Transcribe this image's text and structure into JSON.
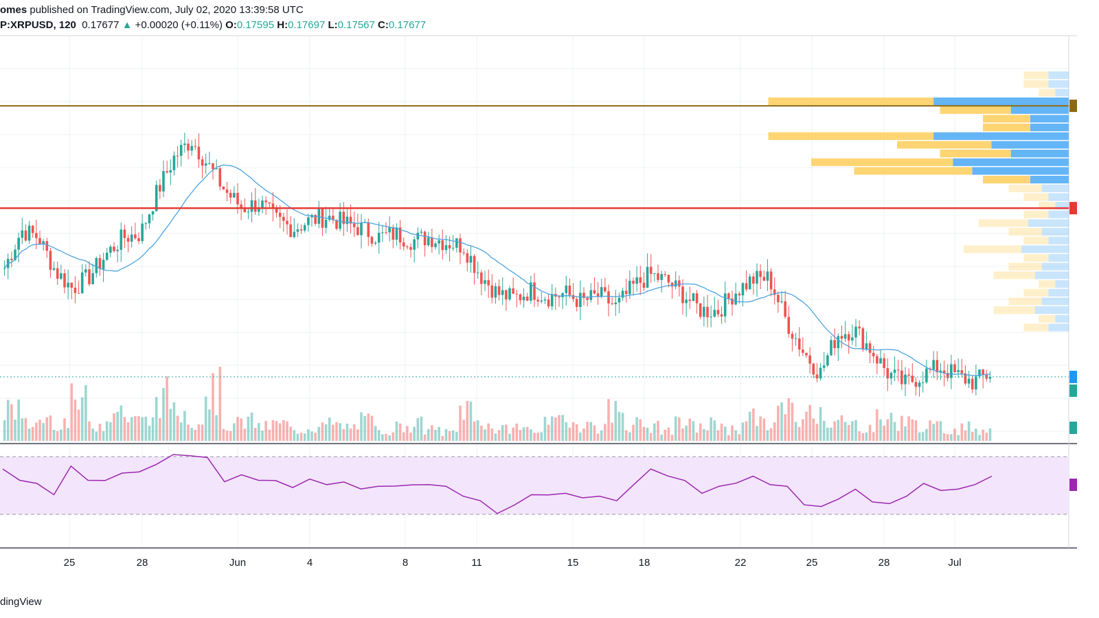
{
  "header": {
    "author": "omes",
    "published": "published on TradingView.com, July 02, 2020 13:39:58 UTC",
    "symbol": "P:XRPUSD, 120",
    "last": "0.17677",
    "arrow": "▲",
    "change": "+0.00020 (+0.11%)",
    "o_label": "O:",
    "o_value": "0.17595",
    "h_label": "H:",
    "h_value": "0.17697",
    "l_label": "L:",
    "l_value": "0.17567",
    "c_label": "C:",
    "c_value": "0.17677"
  },
  "footer": {
    "brand": "dingView"
  },
  "colors": {
    "up": "#26a69a",
    "down": "#ef5350",
    "ma": "#4aa3df",
    "rsi": "#9c27b0",
    "rsi_band": "#f3e5fb",
    "resistance": "#8b6914",
    "support": "#e53935",
    "vp_up": "#64b5f6",
    "vp_down": "#ffd36b"
  },
  "chart_data": {
    "type": "candlestick",
    "x_tick_labels": [
      "25",
      "28",
      "Jun",
      "4",
      "8",
      "11",
      "15",
      "18",
      "22",
      "25",
      "28",
      "Jul"
    ],
    "price_path": [
      0.184,
      0.1862,
      0.1858,
      0.1838,
      0.1828,
      0.1835,
      0.1848,
      0.1858,
      0.186,
      0.1885,
      0.1905,
      0.1915,
      0.19,
      0.1885,
      0.1875,
      0.1878,
      0.1868,
      0.1863,
      0.1868,
      0.187,
      0.1866,
      0.1863,
      0.1858,
      0.186,
      0.1856,
      0.1858,
      0.1855,
      0.1853,
      0.1836,
      0.1825,
      0.1822,
      0.1827,
      0.1823,
      0.1825,
      0.182,
      0.1824,
      0.1817,
      0.1829,
      0.1836,
      0.1832,
      0.1824,
      0.1815,
      0.1815,
      0.1826,
      0.1833,
      0.1834,
      0.1809,
      0.1791,
      0.1778,
      0.1801,
      0.1804,
      0.1792,
      0.1778,
      0.1772,
      0.1777,
      0.1782,
      0.1777,
      0.1773,
      0.1778
    ],
    "volumes": [
      0.6,
      0.3,
      0.4,
      0.35,
      0.7,
      0.3,
      0.55,
      0.45,
      0.35,
      0.8,
      0.5,
      0.4,
      0.9,
      0.3,
      0.35,
      0.25,
      0.3,
      0.2,
      0.25,
      0.3,
      0.25,
      0.35,
      0.2,
      0.25,
      0.3,
      0.2,
      0.15,
      0.6,
      0.35,
      0.2,
      0.25,
      0.2,
      0.3,
      0.4,
      0.3,
      0.25,
      0.55,
      0.3,
      0.25,
      0.2,
      0.3,
      0.25,
      0.3,
      0.2,
      0.45,
      0.3,
      0.55,
      0.4,
      0.6,
      0.35,
      0.3,
      0.25,
      0.4,
      0.35,
      0.3,
      0.25,
      0.2,
      0.25,
      0.2
    ],
    "rsi": [
      60,
      55,
      50,
      45,
      62,
      55,
      52,
      60,
      58,
      66,
      70,
      72,
      68,
      54,
      56,
      55,
      52,
      50,
      53,
      52,
      51,
      49,
      48,
      51,
      49,
      52,
      48,
      44,
      38,
      32,
      35,
      45,
      42,
      46,
      40,
      44,
      38,
      52,
      60,
      58,
      52,
      46,
      48,
      53,
      55,
      52,
      48,
      38,
      34,
      42,
      46,
      40,
      36,
      44,
      50,
      48,
      46,
      52,
      55
    ],
    "volume_profile": [
      0.15,
      0.15,
      0.1,
      0.35,
      0.15,
      0.1,
      0.1,
      0.35,
      0.2,
      0.15,
      0.3,
      0.25,
      0.1,
      0.2,
      0.15,
      0.1,
      0.15,
      0.3,
      0.2,
      0.15,
      0.35,
      0.15,
      0.2,
      0.25,
      0.1,
      0.15,
      0.2,
      0.25,
      0.1,
      0.15
    ],
    "resistance_level": 0.1935,
    "support_level": 0.1875,
    "ma_period": 20
  }
}
